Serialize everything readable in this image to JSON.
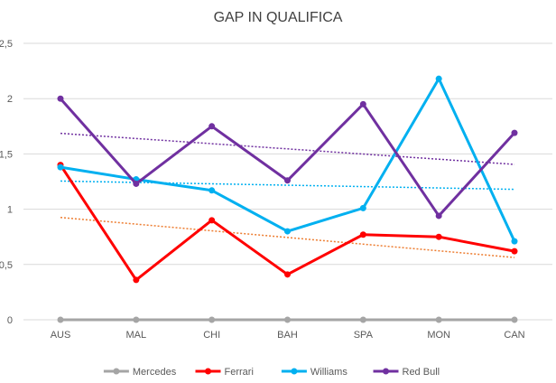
{
  "chart_data": {
    "type": "line",
    "title": "GAP IN QUALIFICA",
    "xlabel": "",
    "ylabel": "",
    "categories": [
      "AUS",
      "MAL",
      "CHI",
      "BAH",
      "SPA",
      "MON",
      "CAN"
    ],
    "ylim": [
      0,
      2.5
    ],
    "yticks": [
      "0",
      "0,5",
      "1",
      "1,5",
      "2",
      "2,5"
    ],
    "grid": true,
    "legend_position": "bottom",
    "series": [
      {
        "name": "Mercedes",
        "color": "#a5a5a5",
        "values": [
          0,
          0,
          0,
          0,
          0,
          0,
          0
        ],
        "trendline": false
      },
      {
        "name": "Ferrari",
        "color": "#ff0000",
        "values": [
          1.4,
          0.36,
          0.9,
          0.41,
          0.77,
          0.75,
          0.62
        ],
        "trendline": true,
        "trend_color": "#ed7d31"
      },
      {
        "name": "Williams",
        "color": "#00b0f0",
        "values": [
          1.38,
          1.27,
          1.17,
          0.8,
          1.01,
          2.18,
          0.71
        ],
        "trendline": true,
        "trend_color": "#00b0f0"
      },
      {
        "name": "Red Bull",
        "color": "#7030a0",
        "values": [
          2.0,
          1.23,
          1.75,
          1.26,
          1.95,
          0.94,
          1.69
        ],
        "trendline": true,
        "trend_color": "#7030a0"
      }
    ]
  }
}
